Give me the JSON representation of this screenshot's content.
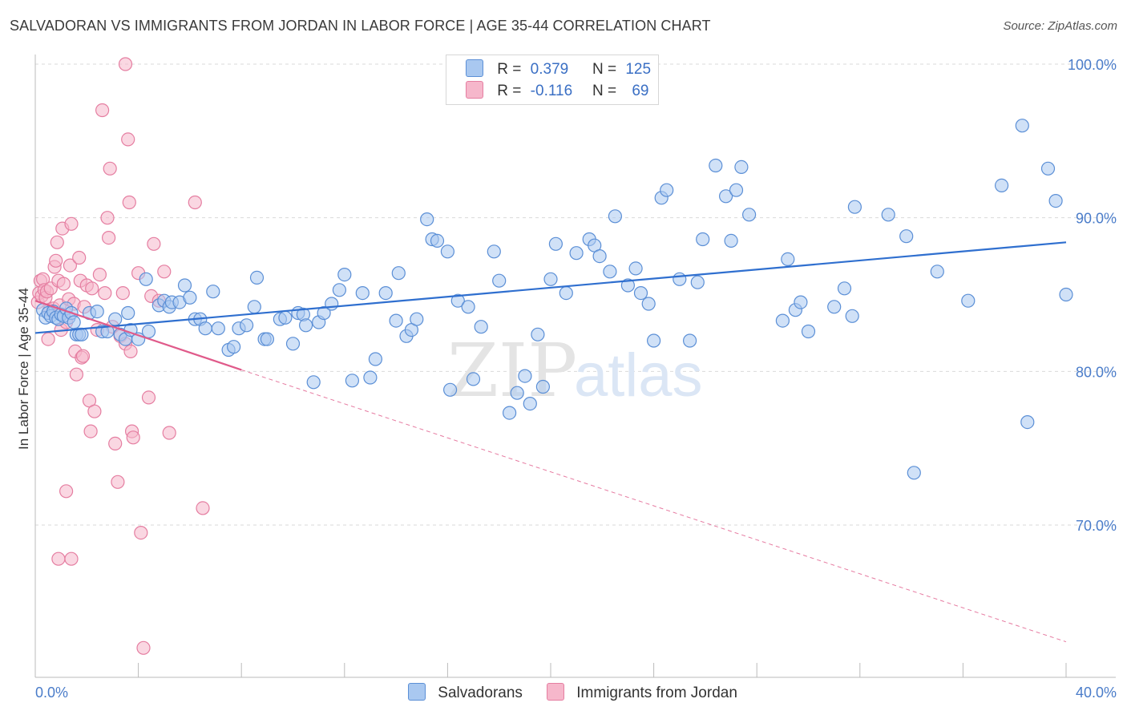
{
  "title": "SALVADORAN VS IMMIGRANTS FROM JORDAN IN LABOR FORCE | AGE 35-44 CORRELATION CHART",
  "source": "Source: ZipAtlas.com",
  "watermark": {
    "zip": "ZIP",
    "atlas": "atlas"
  },
  "legend": {
    "rows": [
      {
        "r_label": "R =",
        "r_value": "0.379",
        "n_label": "N =",
        "n_value": "125"
      },
      {
        "r_label": "R =",
        "r_value": "-0.116",
        "n_label": "N =",
        "n_value": "69"
      }
    ]
  },
  "bottom_legend": [
    "Salvadorans",
    "Immigrants from Jordan"
  ],
  "colors": {
    "blue_fill": "#a9c8f0",
    "blue_stroke": "#5b8fd6",
    "blue_line": "#2f6fcf",
    "pink_fill": "#f6b7cb",
    "pink_stroke": "#e57ea1",
    "pink_line": "#e05a8a",
    "tick_text": "#4a7cc9",
    "grid": "#d9d9d9"
  },
  "chart_data": {
    "type": "scatter",
    "title": "SALVADORAN VS IMMIGRANTS FROM JORDAN IN LABOR FORCE | AGE 35-44 CORRELATION CHART",
    "xlabel": "",
    "ylabel": "In Labor Force | Age 35-44",
    "xlim": [
      0,
      40
    ],
    "ylim": [
      60.5,
      101.5
    ],
    "x_tick_labels": [
      "0.0%",
      "40.0%"
    ],
    "y_ticks": [
      70,
      80,
      90,
      100
    ],
    "y_tick_labels": [
      "70.0%",
      "80.0%",
      "90.0%",
      "100.0%"
    ],
    "grid": "horizontal dashed",
    "series": [
      {
        "name": "Salvadorans",
        "R": 0.379,
        "N": 125,
        "trend": {
          "x": [
            0,
            40
          ],
          "y": [
            82.5,
            88.4
          ],
          "style": "solid"
        },
        "points": [
          [
            0.3,
            84.0
          ],
          [
            0.4,
            83.5
          ],
          [
            0.5,
            83.8
          ],
          [
            0.6,
            83.6
          ],
          [
            0.7,
            83.9
          ],
          [
            0.8,
            83.5
          ],
          [
            0.9,
            83.4
          ],
          [
            1.0,
            83.7
          ],
          [
            1.1,
            83.6
          ],
          [
            1.2,
            84.1
          ],
          [
            1.3,
            83.5
          ],
          [
            1.4,
            83.8
          ],
          [
            1.5,
            83.2
          ],
          [
            1.6,
            82.4
          ],
          [
            1.7,
            82.4
          ],
          [
            1.8,
            82.4
          ],
          [
            2.1,
            83.8
          ],
          [
            2.4,
            83.9
          ],
          [
            2.6,
            82.6
          ],
          [
            2.8,
            82.6
          ],
          [
            3.1,
            83.4
          ],
          [
            3.3,
            82.4
          ],
          [
            3.6,
            83.8
          ],
          [
            3.5,
            82.1
          ],
          [
            3.7,
            82.7
          ],
          [
            4.0,
            82.1
          ],
          [
            4.4,
            82.6
          ],
          [
            4.3,
            86.0
          ],
          [
            4.8,
            84.3
          ],
          [
            5.0,
            84.6
          ],
          [
            5.2,
            84.2
          ],
          [
            5.3,
            84.5
          ],
          [
            5.6,
            84.5
          ],
          [
            5.8,
            85.6
          ],
          [
            6.0,
            84.8
          ],
          [
            6.2,
            83.4
          ],
          [
            6.4,
            83.4
          ],
          [
            6.6,
            82.8
          ],
          [
            6.9,
            85.2
          ],
          [
            7.1,
            82.8
          ],
          [
            7.5,
            81.4
          ],
          [
            7.7,
            81.6
          ],
          [
            7.9,
            82.8
          ],
          [
            8.2,
            83.0
          ],
          [
            8.5,
            84.2
          ],
          [
            8.6,
            86.1
          ],
          [
            8.9,
            82.1
          ],
          [
            9.0,
            82.1
          ],
          [
            9.5,
            83.4
          ],
          [
            9.7,
            83.5
          ],
          [
            10.0,
            81.8
          ],
          [
            10.2,
            83.8
          ],
          [
            10.4,
            83.7
          ],
          [
            10.5,
            83.0
          ],
          [
            10.8,
            79.3
          ],
          [
            11.0,
            83.2
          ],
          [
            11.2,
            83.8
          ],
          [
            11.5,
            84.4
          ],
          [
            11.8,
            85.3
          ],
          [
            12.0,
            86.3
          ],
          [
            12.3,
            79.4
          ],
          [
            12.7,
            85.1
          ],
          [
            13.0,
            79.6
          ],
          [
            13.2,
            80.8
          ],
          [
            13.6,
            85.1
          ],
          [
            14.0,
            83.3
          ],
          [
            14.1,
            86.4
          ],
          [
            14.4,
            82.3
          ],
          [
            14.6,
            82.7
          ],
          [
            14.8,
            83.4
          ],
          [
            15.2,
            89.9
          ],
          [
            15.4,
            88.6
          ],
          [
            15.6,
            88.5
          ],
          [
            16.0,
            87.8
          ],
          [
            16.1,
            78.8
          ],
          [
            16.4,
            84.6
          ],
          [
            16.8,
            84.2
          ],
          [
            17.0,
            79.5
          ],
          [
            17.3,
            82.9
          ],
          [
            17.8,
            87.8
          ],
          [
            18.0,
            85.9
          ],
          [
            18.4,
            77.3
          ],
          [
            18.7,
            78.6
          ],
          [
            19.0,
            79.7
          ],
          [
            19.2,
            77.9
          ],
          [
            19.5,
            82.4
          ],
          [
            19.7,
            79.0
          ],
          [
            20.0,
            86.0
          ],
          [
            20.2,
            88.3
          ],
          [
            20.6,
            85.1
          ],
          [
            21.0,
            87.7
          ],
          [
            21.5,
            88.6
          ],
          [
            21.7,
            88.2
          ],
          [
            21.9,
            87.5
          ],
          [
            22.3,
            86.5
          ],
          [
            22.5,
            90.1
          ],
          [
            23.0,
            85.6
          ],
          [
            23.3,
            86.7
          ],
          [
            23.5,
            85.1
          ],
          [
            23.8,
            84.4
          ],
          [
            24.0,
            82.0
          ],
          [
            24.3,
            91.3
          ],
          [
            24.5,
            91.8
          ],
          [
            25.0,
            86.0
          ],
          [
            25.4,
            82.0
          ],
          [
            25.7,
            85.8
          ],
          [
            25.9,
            88.6
          ],
          [
            26.4,
            93.4
          ],
          [
            26.8,
            91.4
          ],
          [
            27.0,
            88.5
          ],
          [
            27.2,
            91.8
          ],
          [
            27.4,
            93.3
          ],
          [
            27.7,
            90.2
          ],
          [
            29.0,
            83.3
          ],
          [
            29.2,
            87.3
          ],
          [
            29.5,
            84.0
          ],
          [
            29.7,
            84.5
          ],
          [
            30.0,
            82.6
          ],
          [
            31.0,
            84.2
          ],
          [
            31.4,
            85.4
          ],
          [
            31.7,
            83.6
          ],
          [
            31.8,
            90.7
          ],
          [
            33.1,
            90.2
          ],
          [
            33.8,
            88.8
          ],
          [
            34.1,
            73.4
          ],
          [
            35.0,
            86.5
          ],
          [
            36.2,
            84.6
          ],
          [
            37.5,
            92.1
          ],
          [
            38.3,
            96.0
          ],
          [
            38.5,
            76.7
          ],
          [
            39.3,
            93.2
          ],
          [
            39.6,
            91.1
          ],
          [
            40.0,
            85.0
          ]
        ]
      },
      {
        "name": "Immigrants from Jordan",
        "R": -0.116,
        "N": 69,
        "trend_solid": {
          "x": [
            0,
            8
          ],
          "y": [
            84.6,
            80.1
          ]
        },
        "trend_dashed": {
          "x": [
            8,
            40
          ],
          "y": [
            80.1,
            62.4
          ]
        },
        "points": [
          [
            0.1,
            84.5
          ],
          [
            0.15,
            85.1
          ],
          [
            0.2,
            85.9
          ],
          [
            0.25,
            84.9
          ],
          [
            0.3,
            86.0
          ],
          [
            0.35,
            85.3
          ],
          [
            0.4,
            84.8
          ],
          [
            0.45,
            85.2
          ],
          [
            0.5,
            82.1
          ],
          [
            0.55,
            84.0
          ],
          [
            0.6,
            85.4
          ],
          [
            0.7,
            84.1
          ],
          [
            0.75,
            86.8
          ],
          [
            0.8,
            87.2
          ],
          [
            0.85,
            88.4
          ],
          [
            0.9,
            85.9
          ],
          [
            0.95,
            84.3
          ],
          [
            1.0,
            82.7
          ],
          [
            1.05,
            89.3
          ],
          [
            1.1,
            85.7
          ],
          [
            1.2,
            83.2
          ],
          [
            1.3,
            84.7
          ],
          [
            1.35,
            86.9
          ],
          [
            1.4,
            89.6
          ],
          [
            1.5,
            84.4
          ],
          [
            1.55,
            81.3
          ],
          [
            1.6,
            79.8
          ],
          [
            1.7,
            87.4
          ],
          [
            1.75,
            85.9
          ],
          [
            1.8,
            80.9
          ],
          [
            1.85,
            81.0
          ],
          [
            1.9,
            84.2
          ],
          [
            2.0,
            85.6
          ],
          [
            2.1,
            78.1
          ],
          [
            2.15,
            76.1
          ],
          [
            2.2,
            85.4
          ],
          [
            2.3,
            77.4
          ],
          [
            2.4,
            82.7
          ],
          [
            2.5,
            86.3
          ],
          [
            2.6,
            97.0
          ],
          [
            2.7,
            85.1
          ],
          [
            2.8,
            90.0
          ],
          [
            2.85,
            88.7
          ],
          [
            2.9,
            93.2
          ],
          [
            3.0,
            82.9
          ],
          [
            3.1,
            75.3
          ],
          [
            3.2,
            72.8
          ],
          [
            3.3,
            82.3
          ],
          [
            3.4,
            85.1
          ],
          [
            3.5,
            81.8
          ],
          [
            3.6,
            95.1
          ],
          [
            3.65,
            91.0
          ],
          [
            3.7,
            81.3
          ],
          [
            3.75,
            76.1
          ],
          [
            3.8,
            75.7
          ],
          [
            4.0,
            86.4
          ],
          [
            4.1,
            69.5
          ],
          [
            4.2,
            62.0
          ],
          [
            4.4,
            78.3
          ],
          [
            4.5,
            84.9
          ],
          [
            4.6,
            88.3
          ],
          [
            4.8,
            84.6
          ],
          [
            5.0,
            86.5
          ],
          [
            5.2,
            76.0
          ],
          [
            6.2,
            91.0
          ],
          [
            6.5,
            71.1
          ],
          [
            1.2,
            72.2
          ],
          [
            0.9,
            67.8
          ],
          [
            1.4,
            67.8
          ],
          [
            3.5,
            100.0
          ]
        ]
      }
    ]
  }
}
